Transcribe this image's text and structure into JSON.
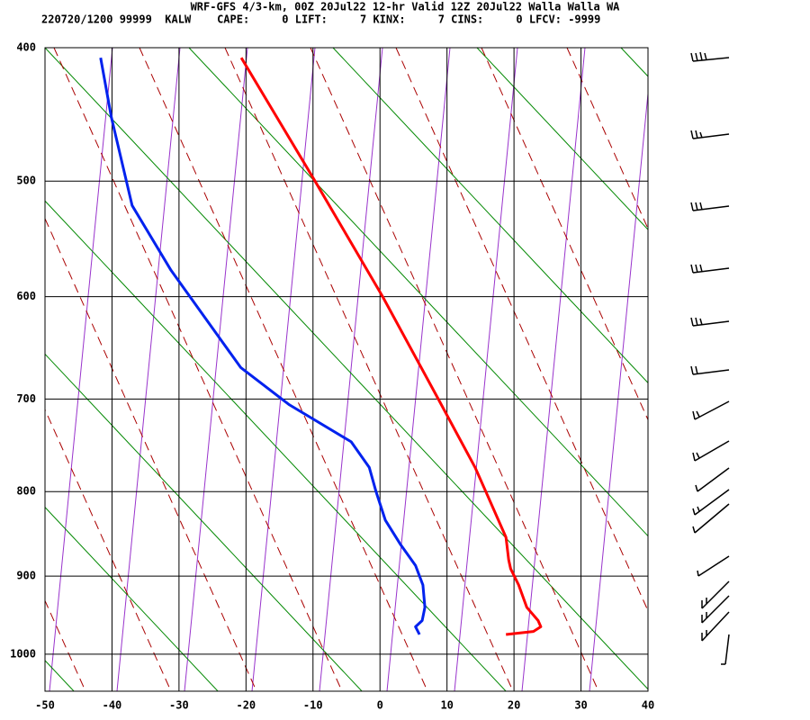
{
  "chart_data": {
    "type": "skewt",
    "title": "WRF-GFS 4/3-km, 00Z 20Jul22 12-hr Valid 12Z 20Jul22 Walla Walla WA",
    "subtitle": "220720/1200 99999  KALW    CAPE:     0 LIFT:     7 KINX:     7 CINS:     0 LFCV: -9999",
    "xlim": [
      -50,
      40
    ],
    "xticks": [
      -50,
      -40,
      -30,
      -20,
      -10,
      0,
      10,
      20,
      30,
      40
    ],
    "ylim": [
      1050,
      400
    ],
    "yticks": [
      400,
      500,
      600,
      700,
      800,
      900,
      1000
    ],
    "grid": true,
    "series": [
      {
        "color": "#ff0000",
        "temperature": [
          -20.7,
          -9.7,
          0.4,
          8.7,
          14.2,
          15.8,
          18.8,
          19.2,
          19.5,
          20.7,
          21.9,
          23.6,
          24,
          22.9,
          18.8
        ],
        "pressure": [
          407,
          500,
          600,
          700,
          773,
          800,
          853,
          880,
          891,
          911,
          939,
          956,
          964,
          970,
          974
        ]
      },
      {
        "color": "#0022ee",
        "temperature": [
          -41.7,
          -40.1,
          -37,
          -31.2,
          -20.8,
          -13.5,
          -4.3,
          -1.6,
          -0.6,
          0.8,
          3.1,
          5.3,
          6.4,
          6.7,
          6.3,
          5.3,
          5.9
        ],
        "pressure": [
          407,
          450,
          520,
          576,
          668,
          706,
          745,
          773,
          800,
          833,
          862,
          887,
          911,
          939,
          956,
          964,
          974
        ]
      }
    ]
  }
}
